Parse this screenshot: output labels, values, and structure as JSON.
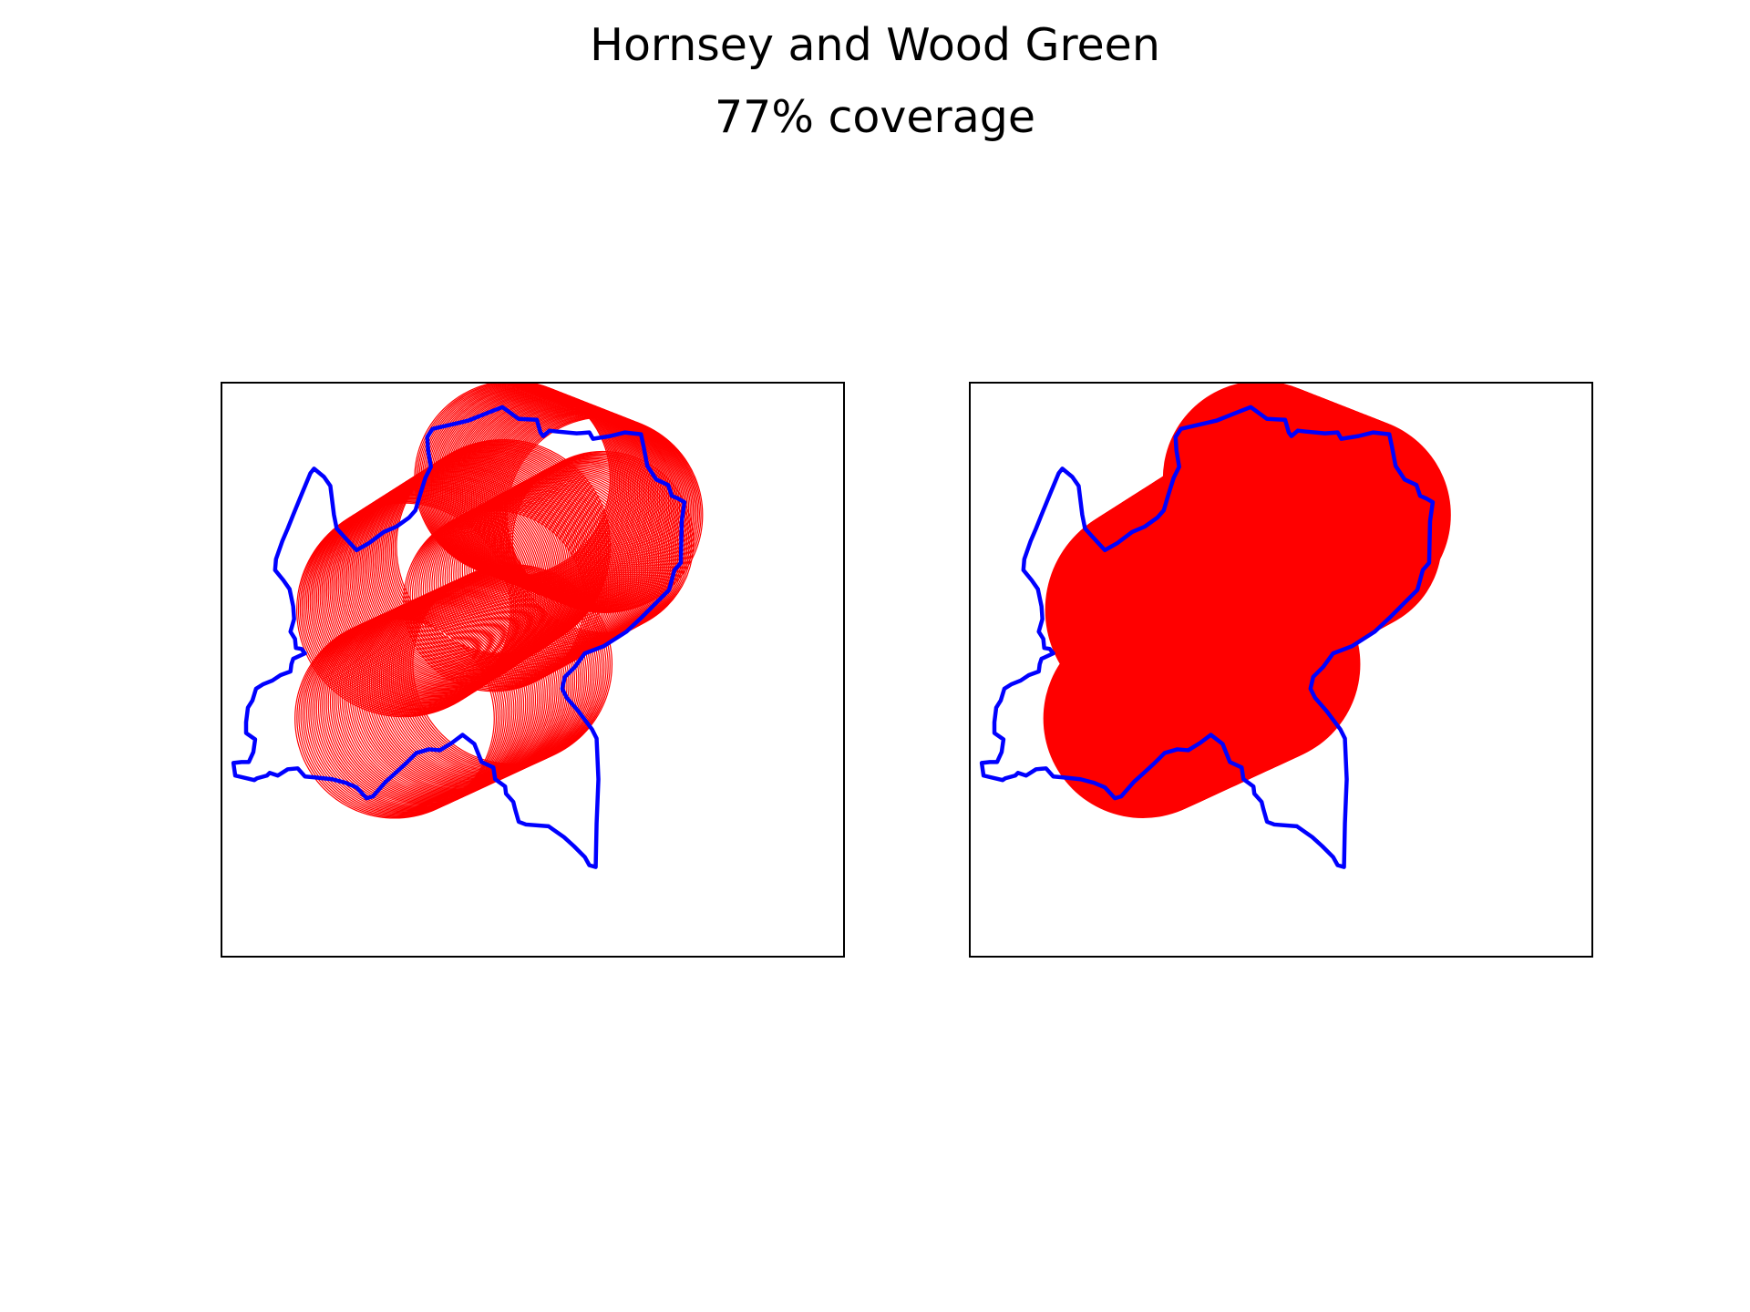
{
  "figure": {
    "title": "Hornsey and Wood Green",
    "subtitle": "77% coverage"
  },
  "colors": {
    "boundary": "#0000ff",
    "coverage": "#ff0000",
    "frame": "#000000",
    "background": "#ffffff"
  },
  "panels": [
    {
      "style": "outlined-circles"
    },
    {
      "style": "filled-union"
    }
  ]
}
